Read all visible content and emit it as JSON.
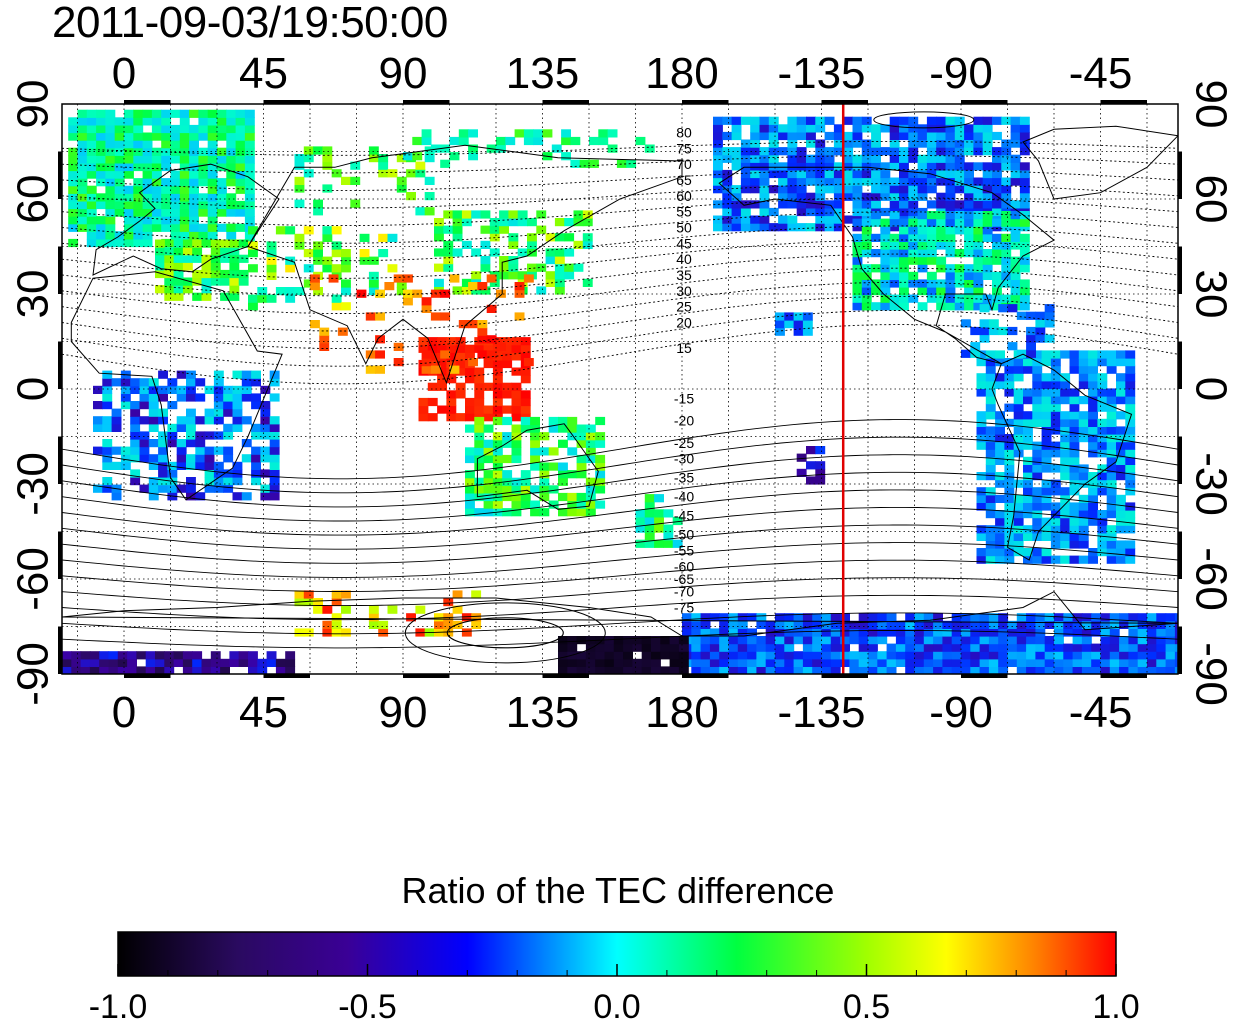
{
  "title": "2011-09-03/19:50:00",
  "map": {
    "lon_ticks_top": [
      "0",
      "45",
      "90",
      "135",
      "180",
      "-135",
      "-90",
      "-45"
    ],
    "lon_ticks_bottom": [
      "0",
      "45",
      "90",
      "135",
      "180",
      "-135",
      "-90",
      "-45"
    ],
    "lat_ticks_left": [
      "90",
      "60",
      "30",
      "0",
      "-30",
      "-60",
      "-90"
    ],
    "lat_ticks_right": [
      "90",
      "60",
      "30",
      "0",
      "-30",
      "-60",
      "-90"
    ],
    "lon_tick_values": [
      0,
      45,
      90,
      135,
      180,
      225,
      270,
      315
    ],
    "lat_tick_values": [
      90,
      60,
      30,
      0,
      -30,
      -60,
      -90
    ],
    "lon_range": [
      -20,
      340
    ],
    "lat_range": [
      -90,
      90
    ],
    "grid": "dotted, every 15 degrees",
    "terminator_longitude": 232,
    "terminator_color": "#e00000",
    "contour_labels_north": [
      "80",
      "75",
      "70",
      "65",
      "60",
      "55",
      "50",
      "45",
      "40",
      "35",
      "30",
      "25",
      "20",
      "15"
    ],
    "contour_labels_south": [
      "-15",
      "-20",
      "-25",
      "-30",
      "-35",
      "-40",
      "-45",
      "-50",
      "-55",
      "-60",
      "-65",
      "-70",
      "-75"
    ],
    "contour_label_lats_north": [
      81,
      76,
      71,
      66,
      61,
      56,
      51,
      46,
      41,
      36,
      31,
      26,
      21,
      13
    ],
    "contour_label_lats_south": [
      -3,
      -10,
      -17,
      -22,
      -28,
      -34,
      -40,
      -46,
      -51,
      -56,
      -60,
      -64,
      -69
    ],
    "contour_label_lon": 180
  },
  "colorbar": {
    "title": "Ratio of the TEC difference",
    "ticks": [
      "-1.0",
      "-0.5",
      "0.0",
      "0.5",
      "1.0"
    ],
    "range": [
      -1.0,
      1.0
    ],
    "colors": [
      "#000000",
      "#3a0078",
      "#0000ff",
      "#00ffff",
      "#00ff00",
      "#ffff00",
      "#ff0000"
    ]
  }
}
